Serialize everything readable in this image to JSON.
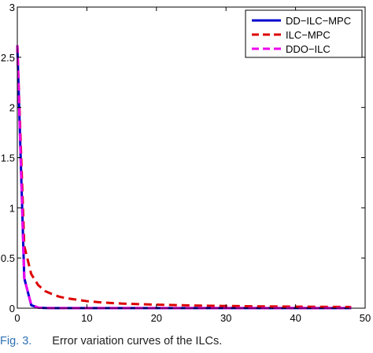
{
  "chart_data": {
    "type": "line",
    "title": "",
    "xlabel": "",
    "ylabel": "",
    "xlim": [
      0,
      50
    ],
    "ylim": [
      0,
      3
    ],
    "x_ticks": [
      0,
      10,
      20,
      30,
      40,
      50
    ],
    "y_ticks": [
      0,
      0.5,
      1,
      1.5,
      2,
      2.5,
      3
    ],
    "x_tick_labels": [
      "0",
      "10",
      "20",
      "30",
      "40",
      "50"
    ],
    "y_tick_labels": [
      "0",
      "0.5",
      "1",
      "1.5",
      "2",
      "2.5",
      "3"
    ],
    "grid": false,
    "legend_position": "top-right",
    "series": [
      {
        "name": "DD−ILC−MPC",
        "color": "#0000cc",
        "line_style": "solid",
        "x": [
          0,
          1,
          2,
          3,
          4,
          5,
          10,
          20,
          30,
          40,
          48
        ],
        "y": [
          2.62,
          0.3,
          0.03,
          0.005,
          0.002,
          0.001,
          0.001,
          0.001,
          0.001,
          0.001,
          0.001
        ]
      },
      {
        "name": "ILC−MPC",
        "color": "#dd0000",
        "line_style": "dashed",
        "x": [
          0,
          1,
          2,
          3,
          4,
          5,
          6,
          7,
          8,
          10,
          12,
          15,
          20,
          25,
          30,
          35,
          40,
          45,
          48
        ],
        "y": [
          2.62,
          0.62,
          0.34,
          0.23,
          0.17,
          0.14,
          0.115,
          0.1,
          0.09,
          0.07,
          0.058,
          0.046,
          0.035,
          0.027,
          0.022,
          0.018,
          0.015,
          0.013,
          0.012
        ]
      },
      {
        "name": "DDO−ILC",
        "color": "#ee00ee",
        "line_style": "dashed",
        "x": [
          0,
          1,
          2,
          3,
          4,
          5,
          10,
          20,
          30,
          40,
          48
        ],
        "y": [
          2.62,
          0.3,
          0.035,
          0.006,
          0.002,
          0.001,
          0.001,
          0.001,
          0.001,
          0.001,
          0.001
        ]
      }
    ]
  },
  "caption": {
    "label": "Fig. 3.",
    "text": "Error variation curves of the ILCs."
  }
}
